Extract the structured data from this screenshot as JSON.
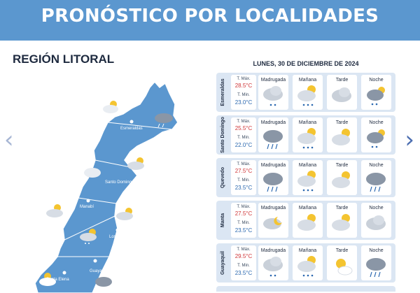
{
  "banner": {
    "title": "PRONÓSTICO POR LOCALIDADES"
  },
  "region": {
    "title": "REGIÓN LITORAL"
  },
  "navigation": {
    "prev": "‹",
    "next": "›"
  },
  "map": {
    "fill_color": "#5b97cf",
    "labels": [
      "Esmeraldas",
      "Santo Domingo De Los Tsáchilas",
      "Manabí",
      "Los Ríos",
      "Guayas",
      "Santa Elena"
    ]
  },
  "forecast": {
    "date": "LUNES, 30 DE DICIEMBRE DE 2024",
    "max_label": "T. Máx.",
    "min_label": "T. Min.",
    "periods": [
      "Madrugada",
      "Mañana",
      "Tarde",
      "Noche"
    ],
    "colors": {
      "max": "#d0383a",
      "min": "#2c69b0"
    },
    "rows": [
      {
        "city": "Esmeraldas",
        "max": "28.5°C",
        "min": "23.0°C",
        "icons": [
          "cloudy-drizzle-icon",
          "partly-sunny-drizzle-icon",
          "cloudy-icon",
          "night-cloud-drizzle-icon"
        ]
      },
      {
        "city": "Santo Domingo",
        "max": "25.5°C",
        "min": "22.0°C",
        "icons": [
          "rain-cloud-icon",
          "partly-sunny-drizzle-icon",
          "partly-sunny-icon",
          "night-cloud-drizzle-icon"
        ]
      },
      {
        "city": "Quevedo",
        "max": "27.5°C",
        "min": "23.5°C",
        "icons": [
          "rain-cloud-icon",
          "partly-sunny-drizzle-icon",
          "partly-sunny-icon",
          "rain-cloud-icon"
        ]
      },
      {
        "city": "Manta",
        "max": "27.5°C",
        "min": "23.5°C",
        "icons": [
          "night-partly-cloudy-icon",
          "partly-sunny-icon",
          "partly-sunny-icon",
          "cloudy-icon"
        ]
      },
      {
        "city": "Guayaquil",
        "max": "29.5°C",
        "min": "23.5°C",
        "icons": [
          "cloudy-drizzle-icon",
          "partly-sunny-drizzle-icon",
          "sun-cloud-icon",
          "rain-cloud-icon"
        ]
      }
    ]
  }
}
